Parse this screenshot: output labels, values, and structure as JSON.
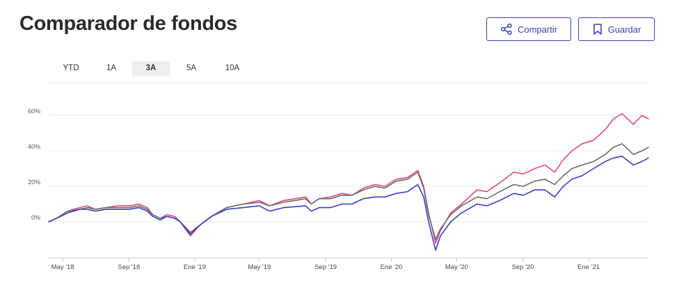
{
  "header": {
    "title": "Comparador de fondos",
    "share_label": "Compartir",
    "save_label": "Guardar",
    "share_icon": "share-icon",
    "save_icon": "bookmark-icon"
  },
  "ranges": {
    "items": [
      "YTD",
      "1A",
      "3A",
      "5A",
      "10A"
    ],
    "selected": "3A"
  },
  "colors": {
    "accent": "#3b3fb6",
    "series": [
      "#e04a7e",
      "#6b6b6b",
      "#3a3dbf"
    ],
    "grid": "#ebebeb"
  },
  "chart_data": {
    "type": "line",
    "x_range": [
      "2018-04-05",
      "2021-04-22"
    ],
    "ylim": [
      -20,
      80
    ],
    "yticks": [
      0,
      20,
      40,
      60
    ],
    "ytick_labels": [
      "0%",
      "20%",
      "40%",
      "60%"
    ],
    "xticks": [
      "2018-05-01",
      "2018-09-01",
      "2019-01-01",
      "2019-05-01",
      "2019-09-01",
      "2020-01-01",
      "2020-05-01",
      "2020-09-01",
      "2021-01-01"
    ],
    "xtick_labels": [
      "May '18",
      "Sep '18",
      "Ene '19",
      "May '19",
      "Sep '19",
      "Ene '20",
      "May '20",
      "Sep '20",
      "Ene '21"
    ],
    "grid": true,
    "legend": "none",
    "series": [
      {
        "x": [
          "2018-04-05",
          "2018-04-20",
          "2018-05-10",
          "2018-06-01",
          "2018-06-15",
          "2018-07-01",
          "2018-07-20",
          "2018-08-10",
          "2018-09-01",
          "2018-09-20",
          "2018-10-05",
          "2018-10-15",
          "2018-10-29",
          "2018-11-10",
          "2018-11-25",
          "2018-12-05",
          "2018-12-24",
          "2019-01-10",
          "2019-02-01",
          "2019-03-01",
          "2019-04-01",
          "2019-05-01",
          "2019-05-20",
          "2019-06-15",
          "2019-07-26",
          "2019-08-05",
          "2019-08-20",
          "2019-09-10",
          "2019-10-01",
          "2019-10-20",
          "2019-11-10",
          "2019-12-01",
          "2019-12-20",
          "2020-01-10",
          "2020-01-31",
          "2020-02-19",
          "2020-03-01",
          "2020-03-10",
          "2020-03-23",
          "2020-04-01",
          "2020-04-20",
          "2020-05-10",
          "2020-06-08",
          "2020-06-26",
          "2020-07-20",
          "2020-08-15",
          "2020-09-02",
          "2020-09-23",
          "2020-10-12",
          "2020-10-30",
          "2020-11-15",
          "2020-12-01",
          "2020-12-20",
          "2021-01-10",
          "2021-02-01",
          "2021-02-16",
          "2021-03-04",
          "2021-03-25",
          "2021-04-10",
          "2021-04-22"
        ],
        "y": [
          0,
          2,
          6,
          8,
          9,
          7,
          8,
          9,
          9,
          10,
          8,
          4,
          2,
          4,
          3,
          0,
          -8,
          -2,
          3,
          8,
          10,
          12,
          9,
          12,
          14,
          10,
          13,
          14,
          16,
          15,
          19,
          21,
          20,
          24,
          25,
          29,
          20,
          5,
          -12,
          -5,
          5,
          10,
          18,
          17,
          22,
          28,
          27,
          30,
          32,
          28,
          35,
          40,
          44,
          46,
          52,
          58,
          61,
          55,
          60,
          58
        ]
      },
      {
        "x": [
          "2018-04-05",
          "2018-04-20",
          "2018-05-10",
          "2018-06-01",
          "2018-06-15",
          "2018-07-01",
          "2018-07-20",
          "2018-08-10",
          "2018-09-01",
          "2018-09-20",
          "2018-10-05",
          "2018-10-15",
          "2018-10-29",
          "2018-11-10",
          "2018-11-25",
          "2018-12-05",
          "2018-12-24",
          "2019-01-10",
          "2019-02-01",
          "2019-03-01",
          "2019-04-01",
          "2019-05-01",
          "2019-05-20",
          "2019-06-15",
          "2019-07-26",
          "2019-08-05",
          "2019-08-20",
          "2019-09-10",
          "2019-10-01",
          "2019-10-20",
          "2019-11-10",
          "2019-12-01",
          "2019-12-20",
          "2020-01-10",
          "2020-01-31",
          "2020-02-19",
          "2020-03-01",
          "2020-03-10",
          "2020-03-23",
          "2020-04-01",
          "2020-04-20",
          "2020-05-10",
          "2020-06-08",
          "2020-06-26",
          "2020-07-20",
          "2020-08-15",
          "2020-09-02",
          "2020-09-23",
          "2020-10-12",
          "2020-10-30",
          "2020-11-15",
          "2020-12-01",
          "2020-12-20",
          "2021-01-10",
          "2021-02-01",
          "2021-02-16",
          "2021-03-04",
          "2021-03-25",
          "2021-04-10",
          "2021-04-22"
        ],
        "y": [
          0,
          2,
          6,
          7,
          8,
          7,
          8,
          8,
          8,
          9,
          7,
          4,
          2,
          3,
          2,
          0,
          -6,
          -2,
          3,
          8,
          10,
          11,
          9,
          11,
          13,
          10,
          13,
          13,
          15,
          15,
          18,
          20,
          19,
          23,
          24,
          28,
          19,
          4,
          -10,
          -4,
          4,
          9,
          14,
          13,
          17,
          21,
          20,
          23,
          24,
          21,
          26,
          30,
          32,
          34,
          38,
          42,
          44,
          38,
          40,
          42
        ]
      },
      {
        "x": [
          "2018-04-05",
          "2018-04-20",
          "2018-05-10",
          "2018-06-01",
          "2018-06-15",
          "2018-07-01",
          "2018-07-20",
          "2018-08-10",
          "2018-09-01",
          "2018-09-20",
          "2018-10-05",
          "2018-10-15",
          "2018-10-29",
          "2018-11-10",
          "2018-11-25",
          "2018-12-05",
          "2018-12-24",
          "2019-01-10",
          "2019-02-01",
          "2019-03-01",
          "2019-04-01",
          "2019-05-01",
          "2019-05-20",
          "2019-06-15",
          "2019-07-26",
          "2019-08-05",
          "2019-08-20",
          "2019-09-10",
          "2019-10-01",
          "2019-10-20",
          "2019-11-10",
          "2019-12-01",
          "2019-12-20",
          "2020-01-10",
          "2020-01-31",
          "2020-02-19",
          "2020-03-01",
          "2020-03-10",
          "2020-03-23",
          "2020-04-01",
          "2020-04-20",
          "2020-05-10",
          "2020-06-08",
          "2020-06-26",
          "2020-07-20",
          "2020-08-15",
          "2020-09-02",
          "2020-09-23",
          "2020-10-12",
          "2020-10-30",
          "2020-11-15",
          "2020-12-01",
          "2020-12-20",
          "2021-01-10",
          "2021-02-01",
          "2021-02-16",
          "2021-03-04",
          "2021-03-25",
          "2021-04-10",
          "2021-04-22"
        ],
        "y": [
          0,
          2,
          5,
          7,
          7,
          6,
          7,
          7,
          7,
          8,
          6,
          3,
          1,
          3,
          2,
          0,
          -7,
          -2,
          3,
          7,
          8,
          9,
          6,
          8,
          9,
          6,
          8,
          8,
          10,
          10,
          13,
          14,
          14,
          16,
          17,
          21,
          14,
          0,
          -16,
          -8,
          0,
          5,
          10,
          9,
          12,
          16,
          15,
          18,
          18,
          14,
          20,
          24,
          26,
          30,
          34,
          36,
          37,
          32,
          34,
          36
        ]
      }
    ]
  }
}
